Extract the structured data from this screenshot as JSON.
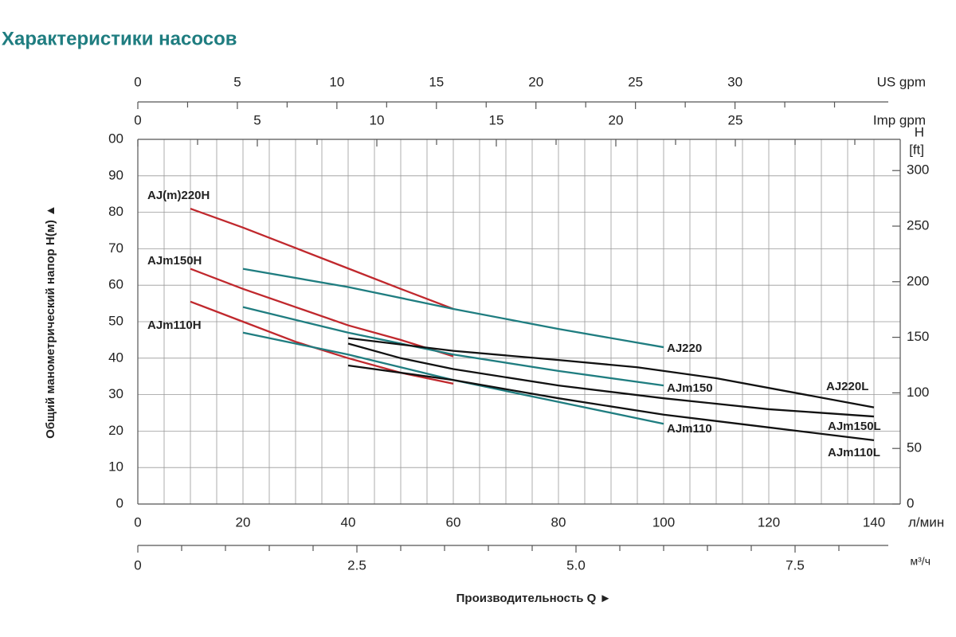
{
  "chart_data": {
    "type": "line",
    "title": "Характеристики насосов",
    "xlabel": "Производительность Q ►",
    "ylabel": "Общий манометрический напор H(м) ▲",
    "xunit": "л/мин",
    "y2label": [
      "H",
      "[ft]"
    ],
    "xlim": [
      0,
      140
    ],
    "xticks": [
      0,
      20,
      40,
      60,
      80,
      100,
      120,
      140
    ],
    "x_minor_ticks": [
      5,
      10,
      15,
      25,
      30,
      35,
      45,
      50,
      55,
      65,
      70,
      75,
      85,
      90,
      95,
      105,
      110,
      115,
      125,
      130,
      135
    ],
    "ylim": [
      0,
      100
    ],
    "yticks": [
      0,
      10,
      20,
      30,
      40,
      50,
      60,
      70,
      80,
      90,
      {
        "value": 100,
        "label": "00"
      }
    ],
    "y2lim": [
      0,
      328.08
    ],
    "y2ticks": [
      0,
      50,
      100,
      150,
      200,
      250,
      300
    ],
    "grid": true,
    "extra_x_axes": [
      {
        "unit": "US gpm",
        "position": "top",
        "lim": [
          0,
          36.98
        ],
        "ticks": [
          0,
          5,
          10,
          15,
          20,
          25,
          30
        ],
        "minor_ticks": [
          2.5,
          7.5,
          12.5,
          17.5,
          22.5,
          27.5,
          32.5,
          35
        ]
      },
      {
        "unit": "Imp gpm",
        "position": "top-inner",
        "lim": [
          0,
          30.8
        ],
        "ticks": [
          0,
          5,
          10,
          15,
          20,
          25
        ],
        "minor_ticks": [
          2.5,
          7.5,
          12.5,
          17.5,
          22.5,
          27.5,
          30
        ]
      },
      {
        "unit": "м³/ч",
        "position": "bottom",
        "lim": [
          0,
          8.4
        ],
        "ticks": [
          0,
          2.5,
          {
            "value": 5,
            "label": "5.0"
          },
          7.5
        ],
        "minor_ticks": [
          0.5,
          1,
          1.5,
          2,
          3,
          3.5,
          4,
          4.5,
          5.5,
          6,
          6.5,
          7,
          8
        ]
      }
    ],
    "series": [
      {
        "name": "AJ(m)220H",
        "color": "#c0282d",
        "x": [
          10,
          20,
          30,
          40,
          50,
          60
        ],
        "values": [
          81,
          75.8,
          70.2,
          64.6,
          59,
          53.5
        ]
      },
      {
        "name": "AJm150H",
        "color": "#c0282d",
        "x": [
          10,
          20,
          30,
          40,
          50,
          60
        ],
        "values": [
          64.5,
          59,
          54,
          49,
          45,
          40.5
        ]
      },
      {
        "name": "AJm110H",
        "color": "#c0282d",
        "x": [
          10,
          20,
          30,
          40,
          50,
          60
        ],
        "values": [
          55.5,
          50,
          44.5,
          40,
          36,
          33
        ]
      },
      {
        "name": "AJ220",
        "color": "#1f7d80",
        "x": [
          20,
          40,
          60,
          80,
          100
        ],
        "values": [
          64.5,
          59.5,
          53.5,
          48,
          43
        ]
      },
      {
        "name": "AJm150",
        "color": "#1f7d80",
        "x": [
          20,
          40,
          60,
          80,
          100
        ],
        "values": [
          54,
          47,
          41,
          36.5,
          32.5
        ]
      },
      {
        "name": "AJm110",
        "color": "#1f7d80",
        "x": [
          20,
          40,
          60,
          80,
          100
        ],
        "values": [
          47,
          41,
          34,
          28,
          22
        ]
      },
      {
        "name": "AJ220L",
        "color": "#111111",
        "x": [
          40,
          60,
          80,
          95,
          110,
          125,
          140
        ],
        "values": [
          45.5,
          42,
          39.5,
          37.5,
          34.5,
          30.5,
          26.5
        ]
      },
      {
        "name": "AJm150L",
        "color": "#111111",
        "x": [
          40,
          50,
          60,
          80,
          100,
          120,
          140
        ],
        "values": [
          44,
          40,
          37,
          32.5,
          29,
          26,
          24
        ]
      },
      {
        "name": "AJm110L",
        "color": "#111111",
        "x": [
          40,
          60,
          80,
          100,
          120,
          140
        ],
        "values": [
          38,
          34,
          29,
          24.5,
          21,
          17.5
        ]
      }
    ]
  }
}
